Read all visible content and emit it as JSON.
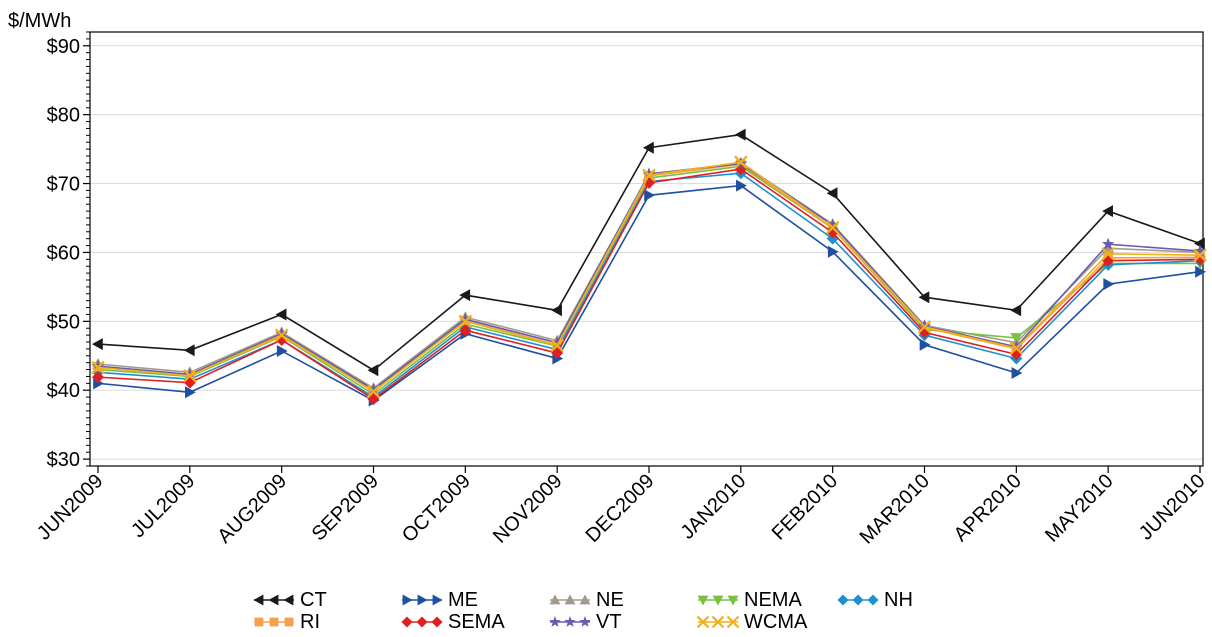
{
  "chart_data": {
    "type": "line",
    "ylabel": "$/MWh",
    "ylim": [
      29,
      92
    ],
    "yticks": [
      30,
      40,
      50,
      60,
      70,
      80,
      90
    ],
    "ytick_labels": [
      "$30",
      "$40",
      "$50",
      "$60",
      "$70",
      "$80",
      "$90"
    ],
    "grid": true,
    "legend_position": "bottom",
    "categories": [
      "JUN2009",
      "JUL2009",
      "AUG2009",
      "SEP2009",
      "OCT2009",
      "NOV2009",
      "DEC2009",
      "JAN2010",
      "FEB2010",
      "MAR2010",
      "APR2010",
      "MAY2010",
      "JUN2010"
    ],
    "series": [
      {
        "name": "CT",
        "color": "#1a1a1a",
        "marker": "triangle-left",
        "values": [
          46.7,
          45.8,
          51.0,
          42.9,
          53.8,
          51.6,
          75.2,
          77.1,
          68.6,
          53.5,
          51.6,
          66.0,
          61.3
        ]
      },
      {
        "name": "ME",
        "color": "#1f4fa0",
        "marker": "triangle-right",
        "values": [
          41.0,
          39.7,
          45.7,
          38.5,
          48.2,
          44.6,
          68.3,
          69.7,
          60.1,
          46.6,
          42.5,
          55.4,
          57.2
        ]
      },
      {
        "name": "NE",
        "color": "#a39a8c",
        "marker": "triangle-up",
        "values": [
          43.8,
          42.6,
          48.4,
          40.3,
          50.6,
          47.2,
          71.3,
          73.0,
          64.1,
          49.4,
          46.9,
          60.6,
          60.0
        ]
      },
      {
        "name": "NEMA",
        "color": "#7ac142",
        "marker": "triangle-down",
        "values": [
          43.0,
          42.0,
          47.8,
          39.4,
          49.6,
          46.4,
          70.8,
          72.5,
          63.5,
          48.8,
          47.6,
          58.4,
          58.4
        ]
      },
      {
        "name": "NH",
        "color": "#1e90d2",
        "marker": "diamond",
        "values": [
          42.6,
          41.6,
          47.3,
          39.0,
          49.2,
          45.9,
          70.3,
          71.5,
          62.0,
          48.0,
          44.6,
          58.2,
          58.8
        ]
      },
      {
        "name": "RI",
        "color": "#f5a04a",
        "marker": "square",
        "values": [
          43.4,
          42.2,
          47.9,
          39.9,
          50.1,
          46.6,
          71.1,
          72.8,
          63.5,
          49.1,
          46.0,
          59.2,
          59.3
        ]
      },
      {
        "name": "SEMA",
        "color": "#e02020",
        "marker": "diamond",
        "values": [
          41.9,
          41.1,
          47.3,
          38.7,
          48.7,
          45.4,
          70.1,
          72.1,
          62.9,
          48.4,
          45.2,
          58.8,
          59.0
        ]
      },
      {
        "name": "VT",
        "color": "#6a5ab0",
        "marker": "star",
        "values": [
          43.5,
          42.3,
          48.2,
          40.1,
          50.3,
          46.9,
          71.4,
          72.9,
          64.0,
          49.3,
          46.3,
          61.2,
          60.2
        ]
      },
      {
        "name": "WCMA",
        "color": "#f0b21a",
        "marker": "x",
        "values": [
          43.3,
          42.1,
          48.0,
          39.8,
          50.0,
          46.5,
          71.2,
          73.1,
          63.6,
          49.2,
          46.1,
          59.8,
          59.6
        ]
      }
    ]
  }
}
